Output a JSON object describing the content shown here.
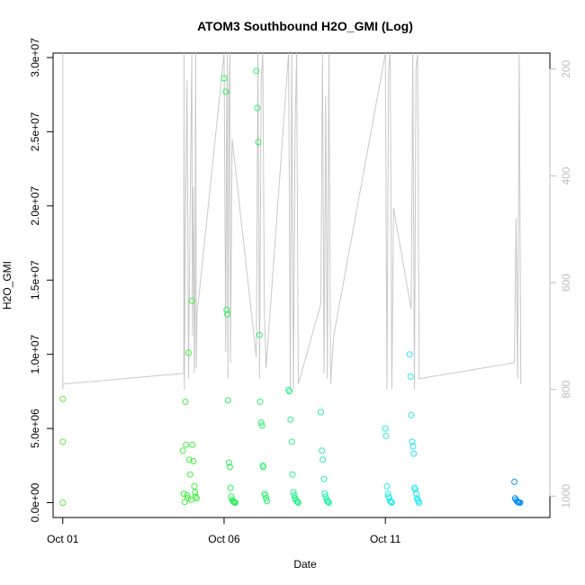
{
  "chart_data": {
    "type": "scatter",
    "title": "ATOM3 Southbound H2O_GMI (Log)",
    "xlabel": "Date",
    "ylabel": "H2O_GMI",
    "x_range_days": [
      0.7,
      16.1
    ],
    "ylim": [
      -1000000,
      30300000
    ],
    "y_ticks": [
      0,
      5000000,
      10000000,
      15000000,
      20000000,
      25000000,
      30000000
    ],
    "y_tick_labels": [
      "0.0e+00",
      "5.0e+06",
      "1.0e+07",
      "1.5e+07",
      "2.0e+07",
      "2.5e+07",
      "3.0e+07"
    ],
    "x_ticks": [
      1,
      6,
      11
    ],
    "x_tick_labels": [
      "Oct 01",
      "Oct 06",
      "Oct 11"
    ],
    "right_axis": {
      "label": "",
      "range": [
        170,
        1040
      ],
      "ticks": [
        200,
        400,
        600,
        800,
        1000
      ],
      "tick_labels": [
        "200",
        "400",
        "600",
        "800",
        "1000"
      ],
      "reversed": true,
      "color": "#bdbdbd"
    },
    "pressure_line": {
      "color": "#c8c8c8",
      "points": [
        [
          1.0,
          800
        ],
        [
          1.0,
          170
        ],
        [
          1.0,
          790
        ],
        [
          4.75,
          770
        ],
        [
          4.76,
          170
        ],
        [
          4.77,
          800
        ],
        [
          4.8,
          500
        ],
        [
          4.85,
          220
        ],
        [
          4.9,
          780
        ],
        [
          4.95,
          450
        ],
        [
          5.0,
          170
        ],
        [
          5.02,
          700
        ],
        [
          5.05,
          420
        ],
        [
          5.08,
          770
        ],
        [
          5.1,
          640
        ],
        [
          5.12,
          170
        ],
        [
          5.14,
          760
        ],
        [
          5.16,
          660
        ],
        [
          6.0,
          170
        ],
        [
          6.05,
          730
        ],
        [
          6.08,
          300
        ],
        [
          6.1,
          170
        ],
        [
          6.12,
          780
        ],
        [
          6.15,
          250
        ],
        [
          6.18,
          170
        ],
        [
          6.2,
          750
        ],
        [
          6.25,
          330
        ],
        [
          7.0,
          740
        ],
        [
          7.05,
          170
        ],
        [
          7.1,
          780
        ],
        [
          7.15,
          220
        ],
        [
          7.2,
          170
        ],
        [
          7.25,
          660
        ],
        [
          7.3,
          760
        ],
        [
          8.0,
          170
        ],
        [
          8.05,
          800
        ],
        [
          8.1,
          170
        ],
        [
          8.15,
          800
        ],
        [
          8.2,
          320
        ],
        [
          8.25,
          170
        ],
        [
          8.3,
          790
        ],
        [
          9.0,
          640
        ],
        [
          9.05,
          170
        ],
        [
          9.1,
          770
        ],
        [
          9.15,
          250
        ],
        [
          9.2,
          780
        ],
        [
          9.25,
          170
        ],
        [
          9.3,
          790
        ],
        [
          9.4,
          700
        ],
        [
          11.0,
          170
        ],
        [
          11.05,
          800
        ],
        [
          11.1,
          200
        ],
        [
          11.15,
          170
        ],
        [
          11.2,
          800
        ],
        [
          11.25,
          460
        ],
        [
          11.8,
          650
        ],
        [
          11.85,
          170
        ],
        [
          11.9,
          800
        ],
        [
          11.95,
          200
        ],
        [
          12.0,
          170
        ],
        [
          12.05,
          780
        ],
        [
          15.0,
          750
        ],
        [
          15.05,
          480
        ],
        [
          15.1,
          780
        ],
        [
          15.15,
          170
        ],
        [
          15.2,
          790
        ]
      ]
    },
    "series": [
      {
        "name": "",
        "color": "#60e838",
        "x": [
          1.0,
          1.0,
          1.0
        ],
        "y": [
          7000000,
          4100000,
          0
        ]
      },
      {
        "name": "",
        "color": "#3ef03e",
        "x": [
          4.72,
          4.75,
          4.78,
          4.8,
          4.82,
          4.85,
          4.88,
          4.9,
          4.92,
          4.95,
          4.98,
          5.0,
          5.02,
          5.05,
          5.08,
          5.1,
          5.12,
          5.15
        ],
        "y": [
          3500000,
          600000,
          50000,
          6800000,
          3900000,
          500000,
          300000,
          10100000,
          2900000,
          1900000,
          200000,
          13600000,
          3900000,
          2800000,
          1100000,
          700000,
          400000,
          300000
        ]
      },
      {
        "name": "",
        "color": "#2ef05a",
        "x": [
          6.0,
          6.05,
          6.08,
          6.1,
          6.12,
          6.15,
          6.18,
          6.2,
          6.22,
          6.25,
          6.28,
          6.3,
          6.32,
          6.35
        ],
        "y": [
          28600000,
          27700000,
          13000000,
          12700000,
          6900000,
          2700000,
          2400000,
          1000000,
          400000,
          200000,
          100000,
          50000,
          20000,
          0
        ]
      },
      {
        "name": "",
        "color": "#2ef06e",
        "x": [
          7.0,
          7.03,
          7.06,
          7.1,
          7.12,
          7.15,
          7.18,
          7.2,
          7.22,
          7.25,
          7.28,
          7.3,
          7.33
        ],
        "y": [
          29100000,
          26600000,
          24300000,
          11300000,
          6800000,
          5400000,
          5200000,
          2500000,
          2400000,
          600000,
          500000,
          300000,
          100000
        ]
      },
      {
        "name": "",
        "color": "#2af08a",
        "x": [
          8.0,
          8.03,
          8.06,
          8.1,
          8.12,
          8.15,
          8.18,
          8.2,
          8.22,
          8.25,
          8.28,
          8.3
        ],
        "y": [
          7600000,
          7500000,
          5600000,
          4100000,
          1900000,
          700000,
          500000,
          300000,
          200000,
          100000,
          50000,
          0
        ]
      },
      {
        "name": "",
        "color": "#28f0a8",
        "x": [
          9.0,
          9.03,
          9.06,
          9.1,
          9.12,
          9.15,
          9.18,
          9.2,
          9.22,
          9.25
        ],
        "y": [
          6100000,
          3500000,
          2900000,
          1600000,
          600000,
          400000,
          200000,
          100000,
          50000,
          0
        ]
      },
      {
        "name": "",
        "color": "#24f0e0",
        "x": [
          11.0,
          11.02,
          11.05,
          11.08,
          11.1,
          11.12,
          11.15,
          11.18,
          11.2
        ],
        "y": [
          5000000,
          4500000,
          1100000,
          600000,
          400000,
          300000,
          100000,
          50000,
          0
        ]
      },
      {
        "name": "",
        "color": "#20e8f0",
        "x": [
          11.75,
          11.78,
          11.8,
          11.83,
          11.86,
          11.88,
          11.9,
          11.93,
          11.96,
          11.98,
          12.0,
          12.02,
          12.05
        ],
        "y": [
          10000000,
          8500000,
          5900000,
          4100000,
          3800000,
          3300000,
          1000000,
          900000,
          600000,
          300000,
          200000,
          100000,
          0
        ]
      },
      {
        "name": "",
        "color": "#1090f0",
        "x": [
          15.0,
          15.02,
          15.05,
          15.08,
          15.1,
          15.12,
          15.15,
          15.18
        ],
        "y": [
          1400000,
          300000,
          200000,
          100000,
          50000,
          20000,
          10000,
          0
        ]
      }
    ]
  }
}
